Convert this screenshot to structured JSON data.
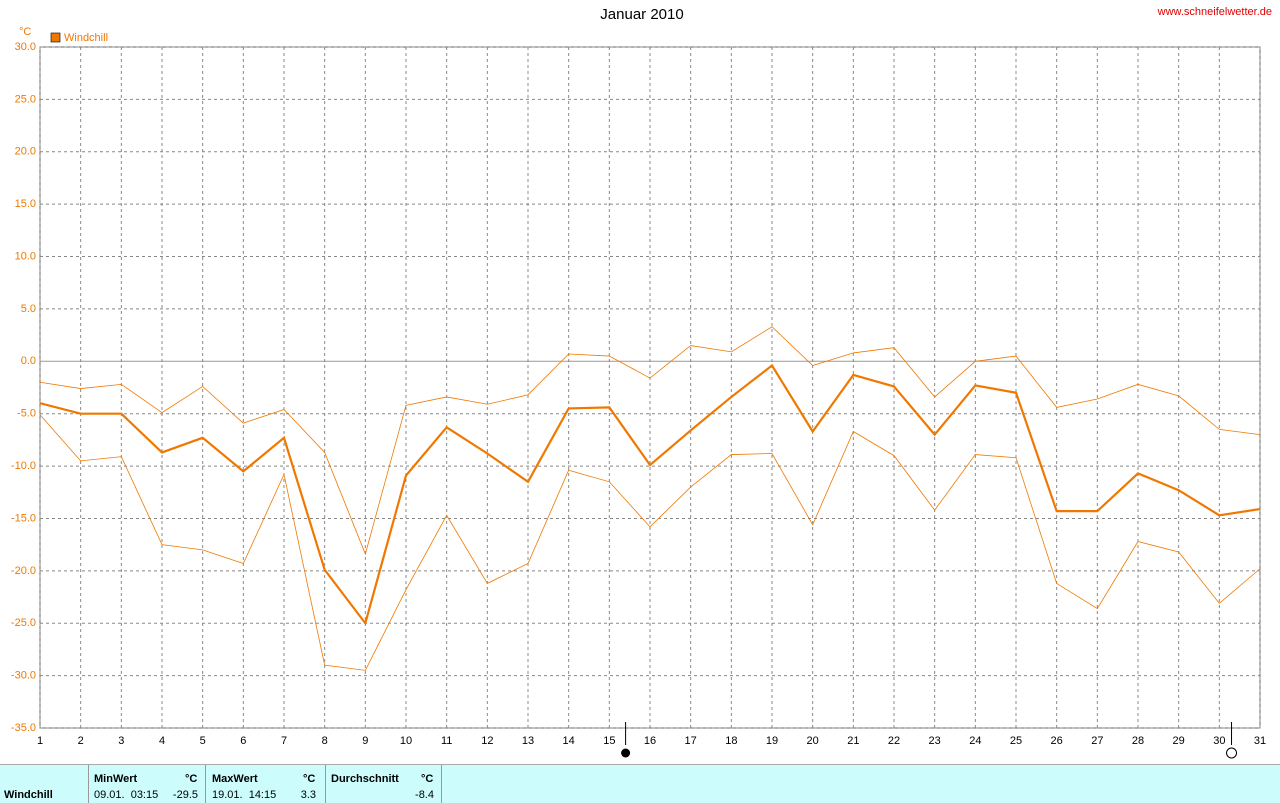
{
  "chart_data": {
    "type": "line",
    "title": "Januar 2010",
    "source": "www.schneifelwetter.de",
    "y_unit": "°C",
    "x": [
      1,
      2,
      3,
      4,
      5,
      6,
      7,
      8,
      9,
      10,
      11,
      12,
      13,
      14,
      15,
      16,
      17,
      18,
      19,
      20,
      21,
      22,
      23,
      24,
      25,
      26,
      27,
      28,
      29,
      30,
      31
    ],
    "xlim": [
      1,
      31
    ],
    "xticks": [
      1,
      2,
      3,
      4,
      5,
      6,
      7,
      8,
      9,
      10,
      11,
      12,
      13,
      14,
      15,
      16,
      17,
      18,
      19,
      20,
      21,
      22,
      23,
      24,
      25,
      26,
      27,
      28,
      29,
      30,
      31
    ],
    "ylim": [
      -35,
      30
    ],
    "yticks": [
      {
        "value": -35,
        "label": "-35.0"
      },
      {
        "value": -30,
        "label": "-30.0"
      },
      {
        "value": -25,
        "label": "-25.0"
      },
      {
        "value": -20,
        "label": "-20.0"
      },
      {
        "value": -15,
        "label": "-15.0"
      },
      {
        "value": -10,
        "label": "-10.0"
      },
      {
        "value": -5,
        "label": "-5.0"
      },
      {
        "value": 0,
        "label": "0.0"
      },
      {
        "value": 5,
        "label": "5.0"
      },
      {
        "value": 10,
        "label": "10.0"
      },
      {
        "value": 15,
        "label": "15.0"
      },
      {
        "value": 20,
        "label": "20.0"
      },
      {
        "value": 25,
        "label": "25.0"
      },
      {
        "value": 30,
        "label": "30.0"
      }
    ],
    "grid": true,
    "legend": "top-left",
    "new_moon_x": 15.4,
    "full_moon_x": 30.3,
    "series": [
      {
        "name": "Windchill",
        "color": "#f07800",
        "width": 2.2,
        "values": [
          -4.0,
          -5.0,
          -5.0,
          -8.7,
          -7.3,
          -10.5,
          -7.3,
          -19.9,
          -25.0,
          -10.9,
          -6.3,
          -8.8,
          -11.5,
          -4.5,
          -4.4,
          -9.9,
          -6.6,
          -3.4,
          -0.4,
          -6.7,
          -1.3,
          -2.4,
          -7.0,
          -2.3,
          -3.0,
          -14.3,
          -14.3,
          -10.7,
          -12.3,
          -14.7,
          -14.1
        ]
      },
      {
        "color": "#f07800",
        "width": 0.8,
        "values": [
          -2.0,
          -2.6,
          -2.2,
          -4.9,
          -2.4,
          -5.9,
          -4.6,
          -8.7,
          -18.4,
          -4.2,
          -3.4,
          -4.1,
          -3.2,
          0.7,
          0.5,
          -1.6,
          1.5,
          0.9,
          3.3,
          -0.4,
          0.8,
          1.3,
          -3.4,
          0.0,
          0.5,
          -4.4,
          -3.6,
          -2.2,
          -3.3,
          -6.5,
          -7.0
        ]
      },
      {
        "color": "#f07800",
        "width": 0.8,
        "values": [
          -5.1,
          -9.5,
          -9.1,
          -17.5,
          -18.0,
          -19.3,
          -10.8,
          -29.0,
          -29.5,
          -21.8,
          -14.7,
          -21.2,
          -19.3,
          -10.4,
          -11.5,
          -15.8,
          -12.0,
          -8.9,
          -8.8,
          -15.6,
          -6.7,
          -9.0,
          -14.2,
          -8.9,
          -9.2,
          -21.2,
          -23.6,
          -17.2,
          -18.2,
          -23.1,
          -19.8
        ]
      }
    ]
  },
  "stats_table": {
    "label": "Windchill",
    "min": {
      "title": "MinWert",
      "unit": "°C",
      "time": "09.01.  03:15",
      "value": -29.5
    },
    "max": {
      "title": "MaxWert",
      "unit": "°C",
      "time": "19.01.  14:15",
      "value": 3.3
    },
    "avg": {
      "title": "Durchschnitt",
      "unit": "°C",
      "value": -8.4
    }
  }
}
